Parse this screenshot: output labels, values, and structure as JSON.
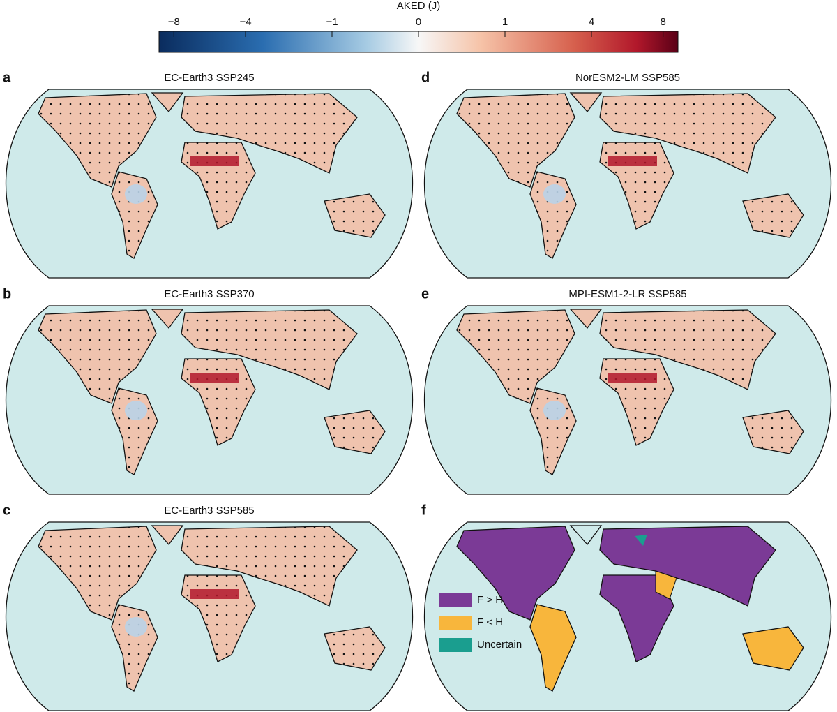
{
  "colorbar": {
    "label": "AKED (J)",
    "scale": "sqrt",
    "lim": [
      -9,
      9
    ],
    "ticks": [
      {
        "value": -8,
        "label": "−8"
      },
      {
        "value": -4,
        "label": "−4"
      },
      {
        "value": -1,
        "label": "−1"
      },
      0,
      1,
      4,
      8
    ]
  },
  "panels": [
    {
      "letter": "a",
      "title": "EC-Earth3 SSP245"
    },
    {
      "letter": "b",
      "title": "EC-Earth3 SSP370"
    },
    {
      "letter": "c",
      "title": "EC-Earth3 SSP585"
    },
    {
      "letter": "d",
      "title": "NorESM2-LM SSP585"
    },
    {
      "letter": "e",
      "title": "MPI-ESM1-2-LR SSP585"
    },
    {
      "letter": "f"
    }
  ],
  "legend": {
    "items": [
      {
        "label": "F > H",
        "color": "#7b3a96"
      },
      {
        "label": "F < H",
        "color": "#f8b63c"
      },
      {
        "label": "Uncertain",
        "color": "#1a9e8f"
      }
    ]
  }
}
